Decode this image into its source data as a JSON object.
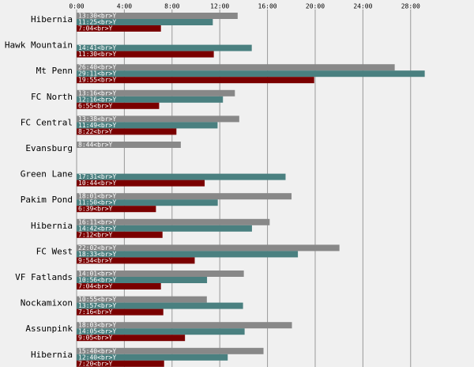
{
  "chart_data": {
    "type": "bar",
    "orientation": "horizontal",
    "categories": [
      "Hibernia",
      "Hawk Mountain",
      "Mt Penn",
      "FC North",
      "FC Central",
      "Evansburg",
      "Green Lane",
      "Pakim Pond",
      "Hibernia",
      "FC West",
      "VF Fatlands",
      "Nockamixon",
      "Assunpink",
      "Hibernia"
    ],
    "series": [
      {
        "color": "#888888",
        "values": [
          810,
          null,
          1600,
          796,
          818,
          524,
          null,
          1081,
          971,
          1322,
          841,
          655,
          1083,
          940
        ],
        "value_labels": [
          "13:30<br>Y",
          null,
          "26:40<br>Y",
          "13:16<br>Y",
          "13:38<br>Y",
          "8:44<br>Y",
          null,
          "18:01<br>Y",
          "16:11<br>Y",
          "22:02<br>Y",
          "14:01<br>Y",
          "10:55<br>Y",
          "18:03<br>Y",
          "15:40<br>Y"
        ]
      },
      {
        "color": "#4a8080",
        "values": [
          685,
          881,
          1751,
          736,
          709,
          null,
          1051,
          710,
          882,
          1113,
          656,
          837,
          845,
          760
        ],
        "value_labels": [
          "11:25<br>Y",
          "14:41<br>Y",
          "29:11<br>Y",
          "12:16<br>Y",
          "11:49<br>Y",
          null,
          "17:31<br>Y",
          "11:50<br>Y",
          "14:42<br>Y",
          "18:33<br>Y",
          "10:56<br>Y",
          "13:57<br>Y",
          "14:05<br>Y",
          "12:40<br>Y"
        ]
      },
      {
        "color": "#7a0000",
        "values": [
          424,
          690,
          1195,
          415,
          502,
          null,
          644,
          399,
          432,
          594,
          424,
          436,
          545,
          440
        ],
        "value_labels": [
          "7:04<br>Y",
          "11:30<br>Y",
          "19:55<br>Y",
          "6:55<br>Y",
          "8:22<br>Y",
          null,
          "10:44<br>Y",
          "6:39<br>Y",
          "7:12<br>Y",
          "9:54<br>Y",
          "7:04<br>Y",
          "7:16<br>Y",
          "9:05<br>Y",
          "7:20<br>Y"
        ]
      }
    ],
    "xlim": [
      0,
      1975
    ],
    "xticks": [
      {
        "value": 0,
        "label": "0:00"
      },
      {
        "value": 240,
        "label": "4:00"
      },
      {
        "value": 480,
        "label": "8:00"
      },
      {
        "value": 720,
        "label": "12:00"
      },
      {
        "value": 960,
        "label": "16:00"
      },
      {
        "value": 1200,
        "label": "20:00"
      },
      {
        "value": 1440,
        "label": "24:00"
      },
      {
        "value": 1680,
        "label": "28:00"
      }
    ],
    "grid": true
  }
}
